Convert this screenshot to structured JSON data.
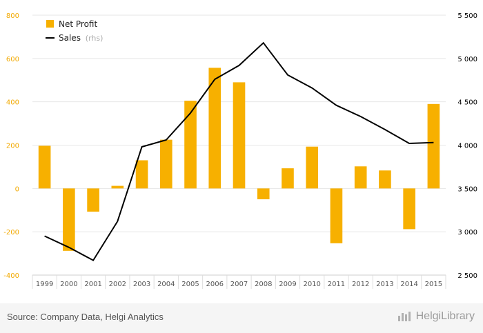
{
  "chart_data": {
    "type": "bar",
    "categories": [
      "1999",
      "2000",
      "2001",
      "2002",
      "2003",
      "2004",
      "2005",
      "2006",
      "2007",
      "2008",
      "2009",
      "2010",
      "2011",
      "2012",
      "2013",
      "2014",
      "2015"
    ],
    "series": [
      {
        "name": "Net Profit",
        "type": "bar",
        "axis": "left",
        "color": "#f7b000",
        "values": [
          197,
          -288,
          -107,
          12,
          130,
          225,
          405,
          557,
          490,
          -50,
          93,
          193,
          -253,
          102,
          83,
          -188,
          390
        ]
      },
      {
        "name": "Sales",
        "name_suffix": "(rhs)",
        "type": "line",
        "axis": "right",
        "color": "#000000",
        "values": [
          2950,
          2820,
          2670,
          3120,
          3980,
          4060,
          4370,
          4760,
          4920,
          5180,
          4810,
          4660,
          4460,
          4330,
          4180,
          4020,
          4030
        ]
      }
    ],
    "left_axis": {
      "ylim": [
        -400,
        800
      ],
      "ticks": [
        -400,
        -200,
        0,
        200,
        400,
        600,
        800
      ],
      "tick_labels": [
        "-400",
        "-200",
        "0",
        "200",
        "400",
        "600",
        "800"
      ]
    },
    "right_axis": {
      "ylim": [
        2500,
        5500
      ],
      "ticks": [
        2500,
        3000,
        3500,
        4000,
        4500,
        5000,
        5500
      ],
      "tick_labels": [
        "2 500",
        "3 000",
        "3 500",
        "4 000",
        "4 500",
        "5 000",
        "5 500"
      ]
    },
    "grid": true,
    "legend_position": "top-left"
  },
  "footer": {
    "source": "Source: Company Data, Helgi Analytics",
    "brand": "HelgiLibrary"
  }
}
